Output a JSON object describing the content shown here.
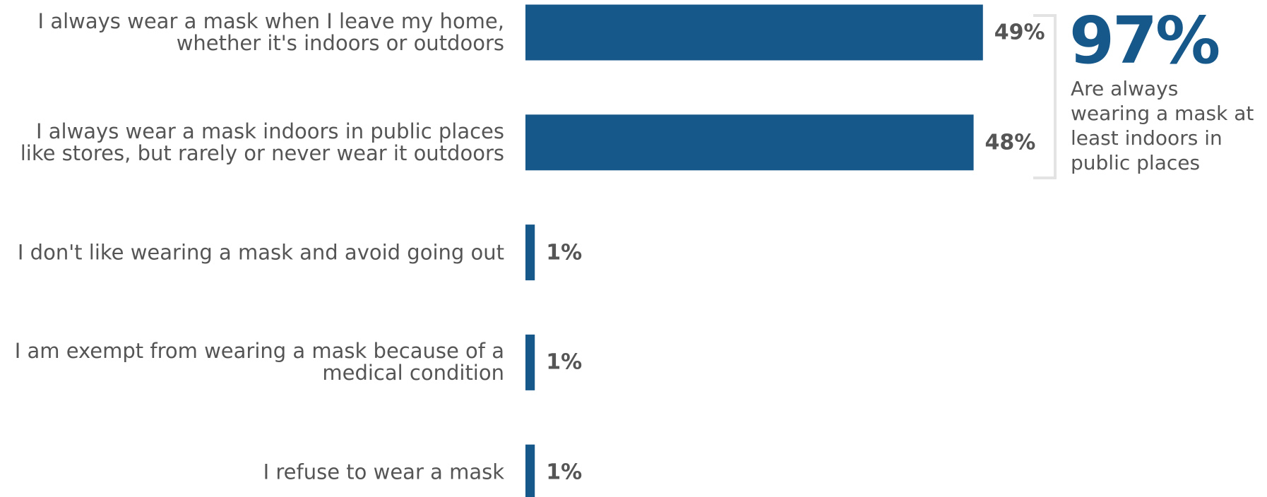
{
  "chart_data": {
    "type": "hbar",
    "categories": [
      "I always wear a mask when I leave my home, whether it's indoors or outdoors",
      "I always wear a mask indoors in public places like stores, but rarely or never wear it outdoors",
      "I don't like wearing a mask and avoid going out",
      "I am exempt from wearing a mask because of a medical condition",
      "I refuse to wear a mask"
    ],
    "values": [
      49,
      48,
      1,
      1,
      1
    ],
    "value_labels": [
      "49%",
      "48%",
      "1%",
      "1%",
      "1%"
    ],
    "color": "#17588a",
    "xlim": [
      0,
      50
    ],
    "callout": {
      "value": "97%",
      "text": "Are always wearing a mask at least indoors in public places"
    }
  }
}
